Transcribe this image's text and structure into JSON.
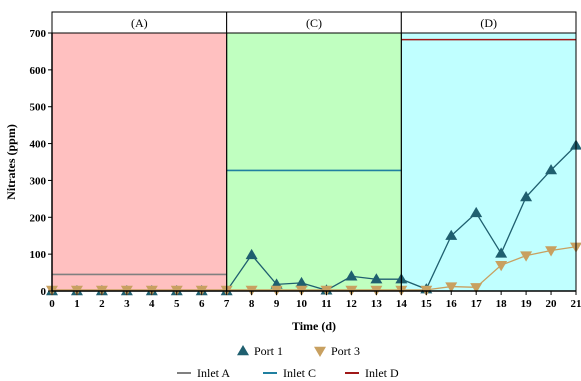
{
  "chart_data": {
    "type": "line",
    "xlabel": "Time (d)",
    "ylabel": "Nitrates (ppm)",
    "xlim": [
      0,
      21
    ],
    "ylim": [
      0,
      700
    ],
    "x_ticks": [
      0,
      1,
      2,
      3,
      4,
      5,
      6,
      7,
      8,
      9,
      10,
      11,
      12,
      13,
      14,
      15,
      16,
      17,
      18,
      19,
      20,
      21
    ],
    "y_ticks": [
      0,
      100,
      200,
      300,
      400,
      500,
      600,
      700
    ],
    "grid": false,
    "legend_position": "bottom",
    "panels": [
      {
        "label": "(A)",
        "x_range": [
          0,
          7
        ],
        "background": "#ffc0c0"
      },
      {
        "label": "(C)",
        "x_range": [
          7,
          14
        ],
        "background": "#c0ffc0"
      },
      {
        "label": "(D)",
        "x_range": [
          14,
          21
        ],
        "background": "#c0ffff"
      }
    ],
    "series": [
      {
        "name": "Port 1",
        "marker": "triangle-up",
        "color": "#1f5f6f",
        "x": [
          0,
          1,
          2,
          3,
          4,
          5,
          6,
          7,
          8,
          9,
          10,
          11,
          12,
          13,
          14,
          15,
          16,
          17,
          18,
          19,
          20,
          21
        ],
        "values": [
          0,
          0,
          0,
          0,
          0,
          0,
          0,
          0,
          98,
          18,
          22,
          2,
          40,
          32,
          32,
          5,
          150,
          212,
          102,
          255,
          328,
          395
        ]
      },
      {
        "name": "Port 3",
        "marker": "triangle-down",
        "color": "#c8a060",
        "x": [
          0,
          1,
          2,
          3,
          4,
          5,
          6,
          7,
          8,
          9,
          10,
          11,
          12,
          13,
          14,
          15,
          16,
          17,
          18,
          19,
          20,
          21
        ],
        "values": [
          3,
          3,
          3,
          3,
          3,
          3,
          3,
          3,
          3,
          3,
          3,
          3,
          3,
          3,
          3,
          3,
          12,
          10,
          70,
          96,
          110,
          120
        ]
      }
    ],
    "reference_lines": [
      {
        "name": "Inlet A",
        "color": "#808080",
        "value": 45,
        "x_range": [
          0,
          7
        ]
      },
      {
        "name": "Inlet C",
        "color": "#2080a0",
        "value": 327,
        "x_range": [
          7,
          14
        ]
      },
      {
        "name": "Inlet D",
        "color": "#a01818",
        "value": 682,
        "x_range": [
          14,
          21
        ]
      }
    ]
  }
}
